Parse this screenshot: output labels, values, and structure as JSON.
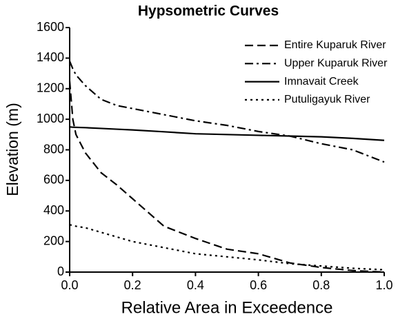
{
  "chart_data": {
    "type": "line",
    "title": "Hypsometric Curves",
    "x_label": "Relative Area in Exceedence",
    "y_label": "Elevation (m)",
    "x": [
      0,
      0.01,
      0.02,
      0.05,
      0.1,
      0.15,
      0.2,
      0.3,
      0.4,
      0.5,
      0.6,
      0.7,
      0.8,
      0.9,
      1.0
    ],
    "series": [
      {
        "name": "Entire Kuparuk River",
        "color": "#000000",
        "style": "dashed",
        "values": [
          1250,
          1000,
          900,
          780,
          650,
          570,
          480,
          300,
          220,
          150,
          120,
          60,
          30,
          10,
          0
        ]
      },
      {
        "name": "Upper Kuparuk River",
        "color": "#000000",
        "style": "dashdot",
        "values": [
          1380,
          1330,
          1290,
          1220,
          1130,
          1090,
          1070,
          1030,
          990,
          960,
          920,
          890,
          840,
          800,
          720
        ]
      },
      {
        "name": "Imnavait Creek",
        "color": "#000000",
        "style": "solid",
        "values": [
          950,
          948,
          947,
          945,
          940,
          935,
          930,
          918,
          905,
          900,
          895,
          890,
          885,
          875,
          862
        ]
      },
      {
        "name": "Putuligayuk River",
        "color": "#000000",
        "style": "dotted",
        "values": [
          310,
          305,
          300,
          290,
          260,
          230,
          200,
          160,
          120,
          100,
          80,
          55,
          40,
          25,
          15
        ]
      }
    ],
    "xlim": [
      0,
      1
    ],
    "ylim": [
      0,
      1600
    ],
    "xticks": [
      {
        "value": 0,
        "label": "0.0"
      },
      0.2,
      0.4,
      0.6,
      0.8,
      {
        "value": 1,
        "label": "1.0"
      }
    ],
    "yticks": [
      0,
      200,
      400,
      600,
      800,
      1000,
      1200,
      1400,
      1600
    ],
    "legend": "upper right",
    "grid": false
  }
}
